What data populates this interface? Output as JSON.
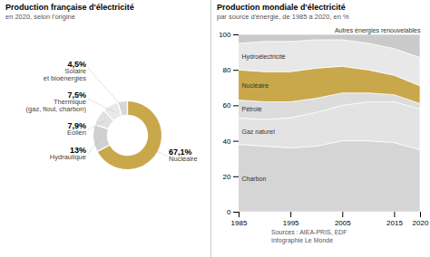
{
  "chart_data": [
    {
      "type": "pie",
      "title": "Production française d'électricité",
      "subtitle": "en 2020, selon l'origine",
      "categories": [
        "Nucléaire",
        "Hydraulique",
        "Eolien",
        "Thermique\n(gaz, fioul, charbon)",
        "Solaire\net bioénergies"
      ],
      "values": [
        67.1,
        13.0,
        7.9,
        7.5,
        4.5
      ],
      "value_labels": [
        "67,1%",
        "13%",
        "7,9%",
        "7,5%",
        "4,5%"
      ],
      "colors": [
        "#C9A84C",
        "#D0D0D0",
        "#E0E0E0",
        "#E8E8E8",
        "#D8D8D8"
      ],
      "data_labels": true
    },
    {
      "type": "area",
      "stacked": true,
      "title": "Production mondiale d'électricité",
      "subtitle": "par source d'énergie, de 1985 à 2020, en %",
      "x": [
        1985,
        1990,
        1995,
        2000,
        2005,
        2010,
        2015,
        2020
      ],
      "series": [
        {
          "name": "Charbon",
          "color": "#D5D5D5",
          "values": [
            38,
            37,
            36,
            37,
            40,
            40,
            39,
            35
          ]
        },
        {
          "name": "Gaz naturel",
          "color": "#E3E3E3",
          "values": [
            15,
            15,
            17,
            19,
            20,
            22,
            23,
            23
          ]
        },
        {
          "name": "Pétrole",
          "color": "#DCDCDC",
          "values": [
            10,
            10,
            9,
            8,
            7,
            5,
            4,
            3
          ]
        },
        {
          "name": "Nucléaire",
          "color": "#C9A84C",
          "values": [
            17,
            17,
            17,
            17,
            15,
            13,
            11,
            10
          ]
        },
        {
          "name": "Hydroélectricité",
          "color": "#E8E8E8",
          "values": [
            15,
            17,
            17,
            16,
            15,
            15,
            15,
            16
          ]
        },
        {
          "name": "Autres énergies renouvelables",
          "color": "#CACACA",
          "values": [
            5,
            4,
            4,
            3,
            3,
            5,
            8,
            13
          ]
        }
      ],
      "xlim": [
        1985,
        2020
      ],
      "xticks": [
        1985,
        1995,
        2005,
        2015,
        2020
      ],
      "ylim": [
        0,
        100
      ],
      "yticks": [
        0,
        20,
        40,
        60,
        80,
        100
      ],
      "grid": false,
      "annotations": [
        "Sources : AIEA-PRIS, EDF",
        "Infographie Le Monde"
      ]
    }
  ]
}
